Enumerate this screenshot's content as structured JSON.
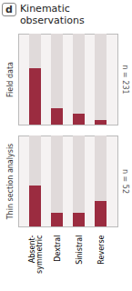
{
  "chart_data": [
    {
      "type": "bar",
      "title": "Kinematic\nobservations",
      "annotations": [
        "d",
        "n = 231"
      ],
      "ylabel": "Field data",
      "categories": [
        "Absent-\nsymmetric",
        "Dextral",
        "Sinistral",
        "Reverse"
      ],
      "values": [
        0.62,
        0.18,
        0.12,
        0.05
      ],
      "color": "#9B2C40",
      "ylim": [
        0,
        1.0
      ],
      "tick_labels": false,
      "grid": false
    },
    {
      "type": "bar",
      "annotations": [
        "n = 52"
      ],
      "ylabel": "Thin section analysis",
      "categories": [
        "Absent-\nsymmetric",
        "Dextral",
        "Sinistral",
        "Reverse"
      ],
      "values": [
        0.45,
        0.15,
        0.15,
        0.28
      ],
      "color": "#9B2C40",
      "ylim": [
        0,
        1.0
      ],
      "tick_labels": "x",
      "grid": false
    }
  ]
}
